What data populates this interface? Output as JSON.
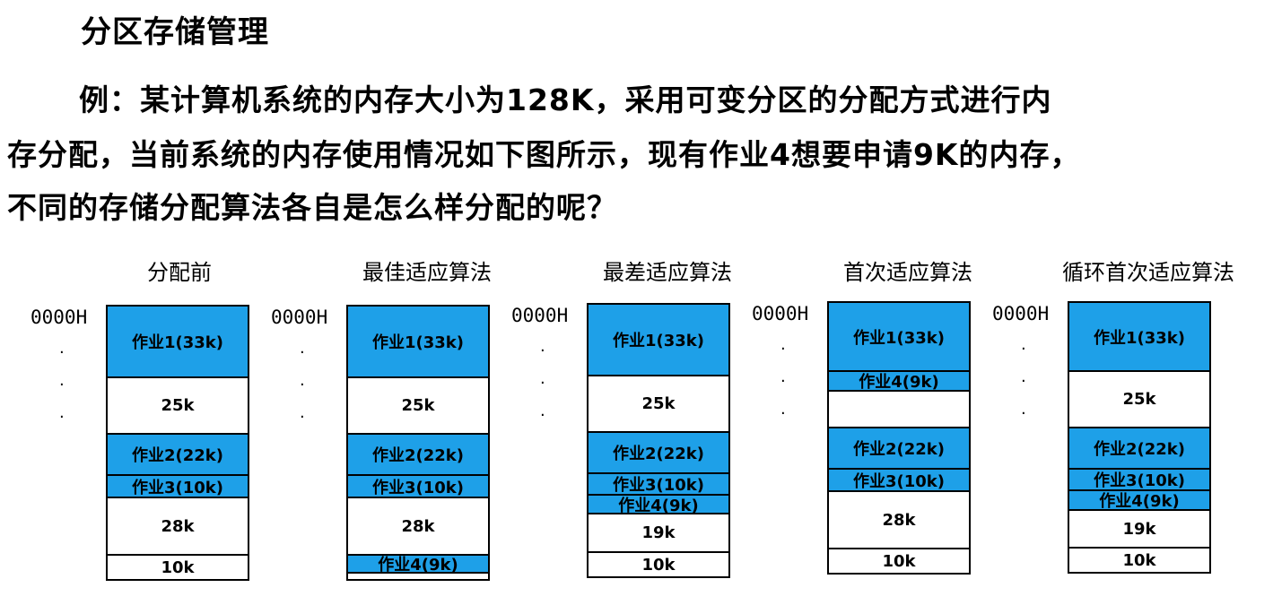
{
  "title": "分区存储管理",
  "paragraph": [
    "例：某计算机系统的内存大小为128K，采用可变分区的分配方式进行内",
    "存分配，当前系统的内存使用情况如下图所示，现有作业4想要申请9K的内存，",
    "不同的存储分配算法各自是怎么样分配的呢？"
  ],
  "colors": {
    "job": "#1ea0e8",
    "free": "#ffffff",
    "border": "#000000"
  },
  "diagrams": [
    {
      "title": "分配前",
      "address": "0000H",
      "blocks": [
        {
          "label": "作业1(33k)",
          "type": "job",
          "size": 80
        },
        {
          "label": "25k",
          "type": "free",
          "size": 63
        },
        {
          "label": "作业2(22k)",
          "type": "job",
          "size": 46
        },
        {
          "label": "作业3(10k)",
          "type": "job",
          "size": 25
        },
        {
          "label": "28k",
          "type": "free",
          "size": 64
        },
        {
          "label": "10k",
          "type": "free",
          "size": 26
        }
      ]
    },
    {
      "title": "最佳适应算法",
      "address": "0000H",
      "blocks": [
        {
          "label": "作业1(33k)",
          "type": "job",
          "size": 80
        },
        {
          "label": "25k",
          "type": "free",
          "size": 63
        },
        {
          "label": "作业2(22k)",
          "type": "job",
          "size": 46
        },
        {
          "label": "作业3(10k)",
          "type": "job",
          "size": 25
        },
        {
          "label": "28k",
          "type": "free",
          "size": 64
        },
        {
          "label": "作业4(9k)",
          "type": "job",
          "size": 20
        },
        {
          "label": "",
          "type": "free",
          "size": 6
        }
      ]
    },
    {
      "title": "最差适应算法",
      "address": "0000H",
      "blocks": [
        {
          "label": "作业1(33k)",
          "type": "job",
          "size": 80
        },
        {
          "label": "25k",
          "type": "free",
          "size": 63
        },
        {
          "label": "作业2(22k)",
          "type": "job",
          "size": 46
        },
        {
          "label": "作业3(10k)",
          "type": "job",
          "size": 24
        },
        {
          "label": "作业4(9k)",
          "type": "job",
          "size": 21
        },
        {
          "label": "19k",
          "type": "free",
          "size": 43
        },
        {
          "label": "10k",
          "type": "free",
          "size": 26
        }
      ]
    },
    {
      "title": "首次适应算法",
      "address": "0000H",
      "blocks": [
        {
          "label": "作业1(33k)",
          "type": "job",
          "size": 77
        },
        {
          "label": "作业4(9k)",
          "type": "job",
          "size": 22
        },
        {
          "label": "",
          "type": "free",
          "size": 41
        },
        {
          "label": "作业2(22k)",
          "type": "job",
          "size": 46
        },
        {
          "label": "作业3(10k)",
          "type": "job",
          "size": 25
        },
        {
          "label": "28k",
          "type": "free",
          "size": 64
        },
        {
          "label": "10k",
          "type": "free",
          "size": 26
        }
      ]
    },
    {
      "title": "循环首次适应算法",
      "address": "0000H",
      "blocks": [
        {
          "label": "作业1(33k)",
          "type": "job",
          "size": 77
        },
        {
          "label": "25k",
          "type": "free",
          "size": 63
        },
        {
          "label": "作业2(22k)",
          "type": "job",
          "size": 46
        },
        {
          "label": "作业3(10k)",
          "type": "job",
          "size": 24
        },
        {
          "label": "作业4(9k)",
          "type": "job",
          "size": 22
        },
        {
          "label": "19k",
          "type": "free",
          "size": 42
        },
        {
          "label": "10k",
          "type": "free",
          "size": 26
        }
      ]
    }
  ]
}
